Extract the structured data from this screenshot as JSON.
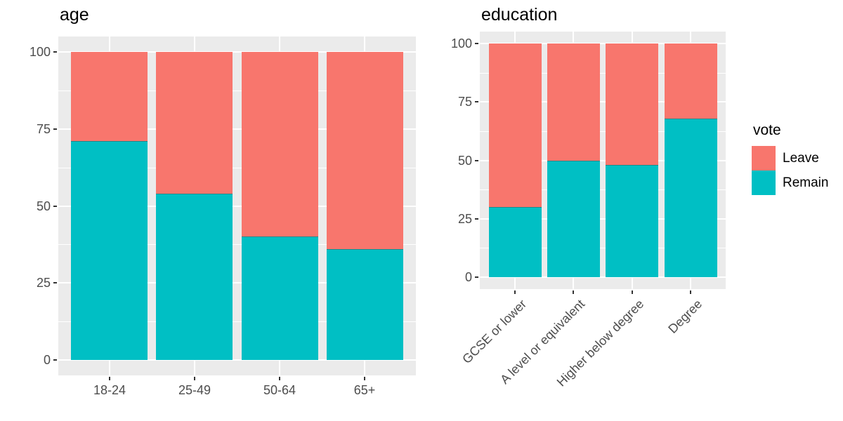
{
  "figure": {
    "background": "#FFFFFF",
    "panel_background": "#EBEBEB",
    "gridline_color": "#FFFFFF",
    "tick_label_color": "#4D4D4D",
    "tick_mark_color": "#333333",
    "title_color": "#000000"
  },
  "colors": {
    "leave": "#F8766D",
    "remain": "#00BFC4"
  },
  "legend": {
    "title": "vote",
    "position": "right",
    "items": [
      {
        "label": "Leave",
        "color": "#F8766D"
      },
      {
        "label": "Remain",
        "color": "#00BFC4"
      }
    ]
  },
  "chart_data": [
    {
      "type": "bar",
      "stacked": true,
      "title": "age",
      "categories": [
        "18-24",
        "25-49",
        "50-64",
        "65+"
      ],
      "series": [
        {
          "name": "Remain",
          "color": "#00BFC4",
          "values": [
            71,
            54,
            40,
            36
          ]
        },
        {
          "name": "Leave",
          "color": "#F8766D",
          "values": [
            29,
            46,
            60,
            64
          ]
        }
      ],
      "xlabel": "",
      "ylabel": "",
      "ylim": [
        0,
        100
      ],
      "yticks": [
        0,
        25,
        50,
        75,
        100
      ],
      "grid": "major-and-minor",
      "x_label_rotation": 0,
      "legend_position": "none"
    },
    {
      "type": "bar",
      "stacked": true,
      "title": "education",
      "categories": [
        "GCSE or lower",
        "A level or equivalent",
        "Higher below degree",
        "Degree"
      ],
      "series": [
        {
          "name": "Remain",
          "color": "#00BFC4",
          "values": [
            30,
            50,
            48,
            68
          ]
        },
        {
          "name": "Leave",
          "color": "#F8766D",
          "values": [
            70,
            50,
            52,
            32
          ]
        }
      ],
      "xlabel": "",
      "ylabel": "",
      "ylim": [
        0,
        100
      ],
      "yticks": [
        0,
        25,
        50,
        75,
        100
      ],
      "grid": "major-and-minor",
      "x_label_rotation": 45,
      "legend_position": "right"
    }
  ]
}
